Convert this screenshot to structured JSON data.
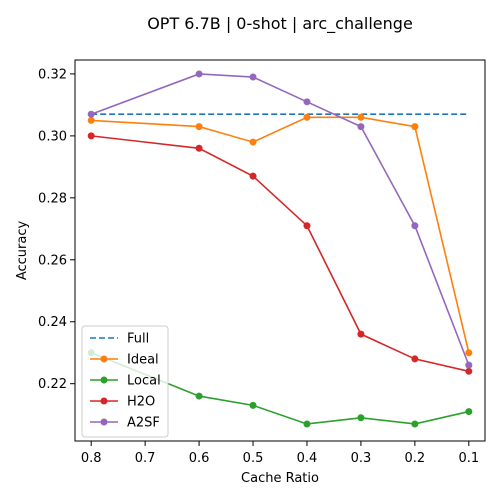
{
  "chart_data": {
    "type": "line",
    "title": "OPT 6.7B | 0-shot | arc_challenge",
    "xlabel": "Cache Ratio",
    "ylabel": "Accuracy",
    "x": [
      0.8,
      0.6,
      0.5,
      0.4,
      0.3,
      0.2,
      0.1
    ],
    "x_ticks": [
      "0.8",
      "0.7",
      "0.6",
      "0.5",
      "0.4",
      "0.3",
      "0.2",
      "0.1"
    ],
    "x_tick_values": [
      0.8,
      0.7,
      0.6,
      0.5,
      0.4,
      0.3,
      0.2,
      0.1
    ],
    "x_reversed": true,
    "xlim": [
      0.83,
      0.07
    ],
    "ylim": [
      0.2015,
      0.3245
    ],
    "y_ticks": [
      "0.22",
      "0.24",
      "0.26",
      "0.28",
      "0.30",
      "0.32"
    ],
    "y_tick_values": [
      0.22,
      0.24,
      0.26,
      0.28,
      0.3,
      0.32
    ],
    "legend_position": "lower-left",
    "grid": false,
    "series": [
      {
        "name": "Full",
        "color": "#1f77b4",
        "dashed": true,
        "markers": false,
        "values": [
          0.307,
          0.307,
          0.307,
          0.307,
          0.307,
          0.307,
          0.307
        ]
      },
      {
        "name": "Ideal",
        "color": "#ff7f0e",
        "dashed": false,
        "markers": true,
        "values": [
          0.305,
          0.303,
          0.298,
          0.306,
          0.306,
          0.303,
          0.23
        ]
      },
      {
        "name": "Local",
        "color": "#2ca02c",
        "dashed": false,
        "markers": true,
        "values": [
          0.23,
          0.216,
          0.213,
          0.207,
          0.209,
          0.207,
          0.211
        ]
      },
      {
        "name": "H2O",
        "color": "#d62728",
        "dashed": false,
        "markers": true,
        "values": [
          0.3,
          0.296,
          0.287,
          0.271,
          0.236,
          0.228,
          0.224
        ]
      },
      {
        "name": "A2SF",
        "color": "#9467bd",
        "dashed": false,
        "markers": true,
        "values": [
          0.307,
          0.32,
          0.319,
          0.311,
          0.303,
          0.271,
          0.226
        ]
      }
    ]
  }
}
